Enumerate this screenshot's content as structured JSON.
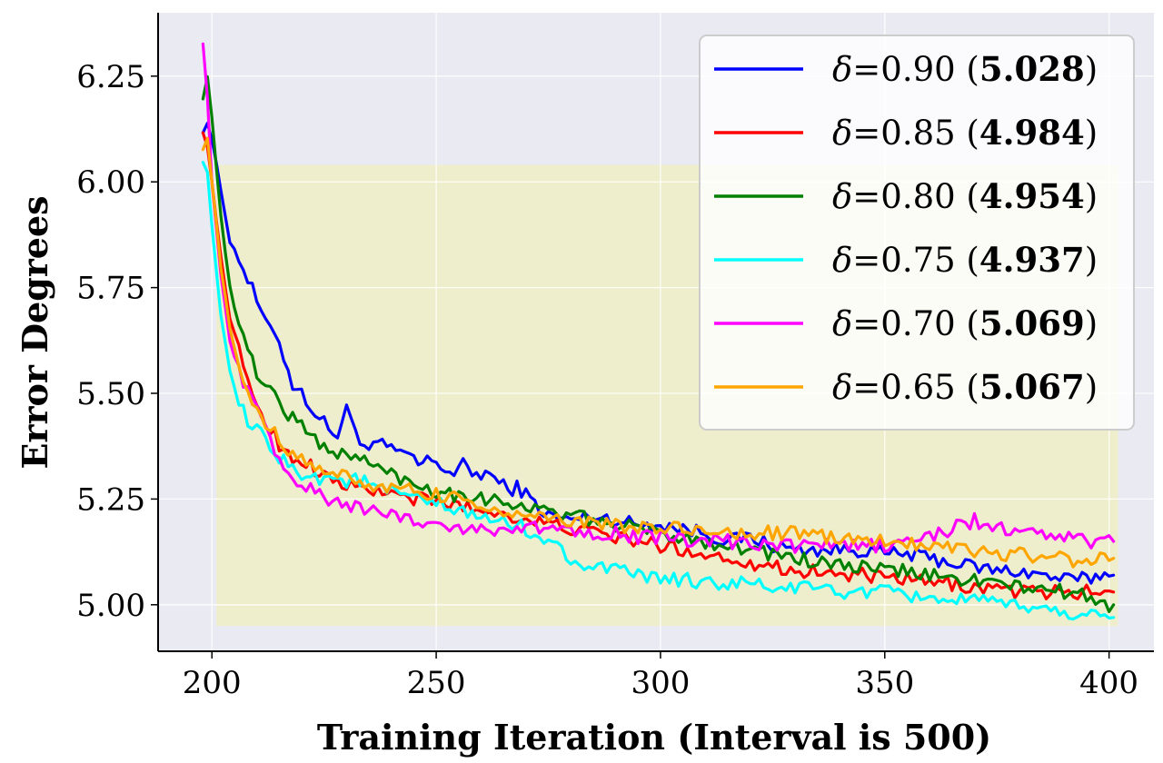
{
  "chart_data": {
    "type": "line",
    "title": "",
    "xlabel": "Training Iteration (Interval is 500)",
    "ylabel": "Error Degrees",
    "xlim": [
      188,
      410
    ],
    "ylim": [
      4.89,
      6.4
    ],
    "xticks": [
      200,
      250,
      300,
      350,
      400
    ],
    "xtick_labels": [
      "200",
      "250",
      "300",
      "350",
      "400"
    ],
    "yticks": [
      5.0,
      5.25,
      5.5,
      5.75,
      6.0,
      6.25
    ],
    "ytick_labels": [
      "5.00",
      "5.25",
      "5.50",
      "5.75",
      "6.00",
      "6.25"
    ],
    "grid": true,
    "legend_position": "top-right",
    "highlight_region": {
      "x0": 201,
      "x1": 402,
      "y0": 4.95,
      "y1": 6.04,
      "color": "#eeeec8"
    },
    "series": [
      {
        "name": "δ=0.90",
        "label_symbol": "δ",
        "label_value": "=0.90",
        "label_score": "5.028",
        "color": "#0000ff",
        "x": [
          198,
          199,
          200,
          202,
          204,
          206,
          208,
          210,
          212,
          214,
          216,
          218,
          220,
          222,
          224,
          226,
          228,
          230,
          232,
          234,
          236,
          238,
          240,
          242,
          244,
          246,
          248,
          250,
          252,
          254,
          256,
          258,
          260,
          262,
          264,
          266,
          268,
          270,
          275,
          280,
          285,
          290,
          295,
          300,
          305,
          310,
          315,
          320,
          325,
          330,
          335,
          340,
          345,
          350,
          355,
          360,
          365,
          370,
          375,
          380,
          385,
          390,
          395,
          398,
          400,
          401
        ],
        "y": [
          6.12,
          6.14,
          6.1,
          5.98,
          5.86,
          5.82,
          5.77,
          5.72,
          5.66,
          5.65,
          5.59,
          5.52,
          5.5,
          5.47,
          5.44,
          5.42,
          5.4,
          5.46,
          5.42,
          5.37,
          5.37,
          5.38,
          5.37,
          5.35,
          5.36,
          5.33,
          5.34,
          5.34,
          5.32,
          5.31,
          5.33,
          5.31,
          5.31,
          5.31,
          5.29,
          5.27,
          5.28,
          5.26,
          5.21,
          5.2,
          5.21,
          5.2,
          5.19,
          5.19,
          5.18,
          5.17,
          5.15,
          5.16,
          5.14,
          5.13,
          5.13,
          5.13,
          5.13,
          5.12,
          5.12,
          5.11,
          5.1,
          5.09,
          5.08,
          5.08,
          5.07,
          5.06,
          5.06,
          5.07,
          5.08,
          5.07
        ]
      },
      {
        "name": "δ=0.85",
        "label_symbol": "δ",
        "label_value": "=0.85",
        "label_score": "4.984",
        "color": "#ff0000",
        "x": [
          198,
          199,
          200,
          202,
          204,
          206,
          208,
          210,
          212,
          214,
          216,
          218,
          220,
          222,
          224,
          226,
          228,
          230,
          232,
          234,
          236,
          238,
          240,
          242,
          244,
          246,
          248,
          250,
          252,
          254,
          256,
          258,
          260,
          262,
          264,
          266,
          268,
          270,
          275,
          280,
          285,
          290,
          295,
          300,
          305,
          310,
          315,
          320,
          325,
          330,
          335,
          340,
          345,
          350,
          355,
          360,
          365,
          370,
          375,
          380,
          385,
          390,
          395,
          398,
          400,
          401
        ],
        "y": [
          6.12,
          6.08,
          6.0,
          5.82,
          5.68,
          5.6,
          5.52,
          5.48,
          5.43,
          5.4,
          5.36,
          5.35,
          5.34,
          5.33,
          5.31,
          5.3,
          5.29,
          5.28,
          5.28,
          5.27,
          5.27,
          5.27,
          5.26,
          5.26,
          5.25,
          5.25,
          5.25,
          5.24,
          5.24,
          5.24,
          5.23,
          5.23,
          5.22,
          5.22,
          5.22,
          5.21,
          5.21,
          5.2,
          5.19,
          5.18,
          5.17,
          5.16,
          5.15,
          5.14,
          5.13,
          5.12,
          5.11,
          5.1,
          5.09,
          5.08,
          5.08,
          5.07,
          5.07,
          5.06,
          5.06,
          5.05,
          5.05,
          5.04,
          5.04,
          5.03,
          5.03,
          5.03,
          5.03,
          5.03,
          5.03,
          5.03
        ]
      },
      {
        "name": "δ=0.80",
        "label_symbol": "δ",
        "label_value": "=0.80",
        "label_score": "4.954",
        "color": "#008000",
        "x": [
          198,
          199,
          200,
          202,
          204,
          206,
          208,
          210,
          212,
          214,
          216,
          218,
          220,
          222,
          224,
          226,
          228,
          230,
          232,
          234,
          236,
          238,
          240,
          242,
          244,
          246,
          248,
          250,
          252,
          254,
          256,
          258,
          260,
          262,
          264,
          266,
          268,
          270,
          275,
          280,
          285,
          290,
          295,
          300,
          305,
          310,
          315,
          320,
          325,
          330,
          335,
          340,
          345,
          350,
          355,
          360,
          365,
          370,
          375,
          380,
          385,
          390,
          395,
          398,
          400,
          401
        ],
        "y": [
          6.2,
          6.25,
          6.15,
          5.92,
          5.75,
          5.66,
          5.6,
          5.55,
          5.52,
          5.5,
          5.46,
          5.44,
          5.43,
          5.4,
          5.38,
          5.37,
          5.36,
          5.35,
          5.35,
          5.34,
          5.33,
          5.32,
          5.31,
          5.3,
          5.29,
          5.28,
          5.28,
          5.27,
          5.27,
          5.26,
          5.26,
          5.26,
          5.25,
          5.25,
          5.25,
          5.24,
          5.24,
          5.23,
          5.22,
          5.21,
          5.2,
          5.19,
          5.18,
          5.17,
          5.16,
          5.15,
          5.14,
          5.13,
          5.12,
          5.11,
          5.1,
          5.09,
          5.09,
          5.08,
          5.08,
          5.07,
          5.06,
          5.06,
          5.05,
          5.04,
          5.04,
          5.03,
          5.02,
          5.01,
          5.0,
          5.0
        ]
      },
      {
        "name": "δ=0.75",
        "label_symbol": "δ",
        "label_value": "=0.75",
        "label_score": "4.937",
        "color": "#00ffff",
        "x": [
          198,
          199,
          200,
          202,
          204,
          206,
          208,
          210,
          212,
          214,
          216,
          218,
          220,
          222,
          224,
          226,
          228,
          230,
          232,
          234,
          236,
          238,
          240,
          242,
          244,
          246,
          248,
          250,
          252,
          254,
          256,
          258,
          260,
          262,
          264,
          266,
          268,
          270,
          275,
          280,
          285,
          290,
          295,
          300,
          305,
          310,
          315,
          320,
          325,
          330,
          335,
          340,
          345,
          350,
          355,
          360,
          365,
          370,
          375,
          380,
          385,
          390,
          395,
          398,
          400,
          401
        ],
        "y": [
          6.05,
          6.02,
          5.9,
          5.68,
          5.55,
          5.48,
          5.43,
          5.41,
          5.39,
          5.36,
          5.34,
          5.32,
          5.31,
          5.31,
          5.3,
          5.3,
          5.3,
          5.29,
          5.3,
          5.29,
          5.28,
          5.27,
          5.27,
          5.26,
          5.25,
          5.25,
          5.24,
          5.24,
          5.23,
          5.22,
          5.22,
          5.21,
          5.21,
          5.2,
          5.2,
          5.19,
          5.19,
          5.18,
          5.15,
          5.11,
          5.09,
          5.08,
          5.07,
          5.06,
          5.06,
          5.05,
          5.05,
          5.05,
          5.04,
          5.04,
          5.04,
          5.03,
          5.03,
          5.03,
          5.02,
          5.02,
          5.01,
          5.01,
          5.0,
          5.0,
          4.99,
          4.98,
          4.98,
          4.97,
          4.97,
          4.97
        ]
      },
      {
        "name": "δ=0.70",
        "label_symbol": "δ",
        "label_value": "=0.70",
        "label_score": "5.069",
        "color": "#ff00ff",
        "x": [
          198,
          199,
          200,
          202,
          204,
          206,
          208,
          210,
          212,
          214,
          216,
          218,
          220,
          222,
          224,
          226,
          228,
          230,
          232,
          234,
          236,
          238,
          240,
          242,
          244,
          246,
          248,
          250,
          252,
          254,
          256,
          258,
          260,
          262,
          264,
          266,
          268,
          270,
          275,
          280,
          285,
          290,
          295,
          300,
          305,
          310,
          315,
          320,
          325,
          330,
          335,
          340,
          345,
          350,
          355,
          360,
          365,
          370,
          375,
          380,
          385,
          390,
          395,
          398,
          400,
          401
        ],
        "y": [
          6.33,
          6.2,
          6.0,
          5.78,
          5.62,
          5.55,
          5.5,
          5.46,
          5.41,
          5.37,
          5.32,
          5.29,
          5.28,
          5.27,
          5.26,
          5.25,
          5.24,
          5.24,
          5.23,
          5.23,
          5.22,
          5.22,
          5.21,
          5.21,
          5.2,
          5.2,
          5.2,
          5.19,
          5.19,
          5.18,
          5.18,
          5.18,
          5.18,
          5.18,
          5.18,
          5.18,
          5.18,
          5.18,
          5.18,
          5.18,
          5.17,
          5.17,
          5.16,
          5.16,
          5.15,
          5.15,
          5.15,
          5.14,
          5.14,
          5.14,
          5.14,
          5.14,
          5.14,
          5.14,
          5.15,
          5.16,
          5.18,
          5.2,
          5.18,
          5.17,
          5.17,
          5.16,
          5.15,
          5.15,
          5.15,
          5.15
        ]
      },
      {
        "name": "δ=0.65",
        "label_symbol": "δ",
        "label_value": "=0.65",
        "label_score": "5.067",
        "color": "#ffa500",
        "x": [
          198,
          199,
          200,
          202,
          204,
          206,
          208,
          210,
          212,
          214,
          216,
          218,
          220,
          222,
          224,
          226,
          228,
          230,
          232,
          234,
          236,
          238,
          240,
          242,
          244,
          246,
          248,
          250,
          252,
          254,
          256,
          258,
          260,
          262,
          264,
          266,
          268,
          270,
          275,
          280,
          285,
          290,
          295,
          300,
          305,
          310,
          315,
          320,
          325,
          330,
          335,
          340,
          345,
          350,
          355,
          360,
          365,
          370,
          375,
          380,
          385,
          390,
          395,
          398,
          400,
          401
        ],
        "y": [
          6.08,
          6.1,
          6.0,
          5.8,
          5.65,
          5.56,
          5.5,
          5.46,
          5.43,
          5.41,
          5.38,
          5.36,
          5.34,
          5.33,
          5.32,
          5.31,
          5.31,
          5.3,
          5.3,
          5.29,
          5.28,
          5.28,
          5.27,
          5.27,
          5.27,
          5.26,
          5.26,
          5.26,
          5.25,
          5.25,
          5.25,
          5.24,
          5.24,
          5.23,
          5.22,
          5.22,
          5.21,
          5.21,
          5.2,
          5.2,
          5.19,
          5.19,
          5.18,
          5.18,
          5.18,
          5.17,
          5.17,
          5.17,
          5.17,
          5.17,
          5.16,
          5.16,
          5.15,
          5.15,
          5.15,
          5.14,
          5.14,
          5.13,
          5.12,
          5.12,
          5.11,
          5.11,
          5.1,
          5.11,
          5.11,
          5.11
        ]
      }
    ]
  }
}
